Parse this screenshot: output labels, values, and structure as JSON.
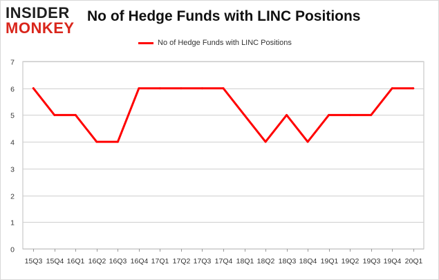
{
  "logo": {
    "line1": "INSIDER",
    "line2": "MONKEY"
  },
  "chart_data": {
    "type": "line",
    "title": "No of Hedge Funds with LINC Positions",
    "categories": [
      "15Q3",
      "15Q4",
      "16Q1",
      "16Q2",
      "16Q3",
      "16Q4",
      "17Q1",
      "17Q2",
      "17Q3",
      "17Q4",
      "18Q1",
      "18Q2",
      "18Q3",
      "18Q4",
      "19Q1",
      "19Q2",
      "19Q3",
      "19Q4",
      "20Q1"
    ],
    "series": [
      {
        "name": "No of Hedge Funds with LINC Positions",
        "values": [
          6,
          5,
          5,
          4,
          4,
          6,
          6,
          6,
          6,
          6,
          5,
          4,
          5,
          4,
          5,
          5,
          5,
          6,
          6
        ],
        "color": "#ff0000"
      }
    ],
    "ylim": [
      0,
      7
    ],
    "yticks": [
      0,
      1,
      2,
      3,
      4,
      5,
      6,
      7
    ],
    "xlabel": "",
    "ylabel": "",
    "grid": true,
    "legend": "top-center"
  }
}
